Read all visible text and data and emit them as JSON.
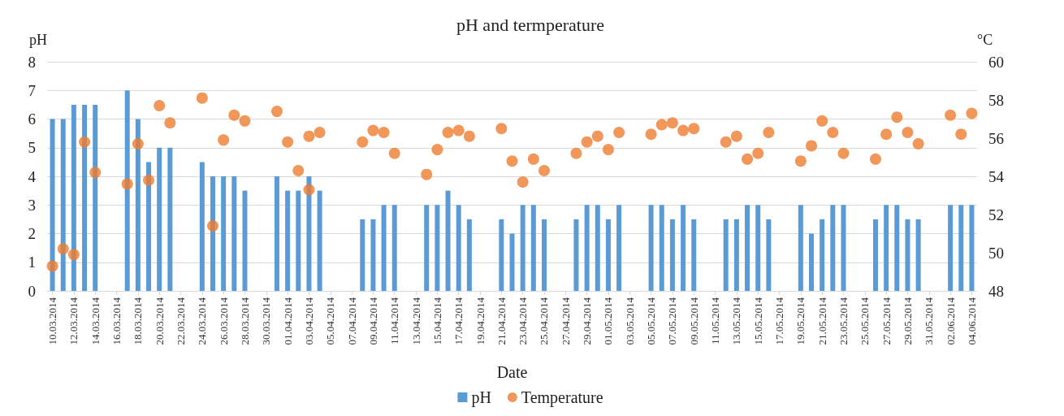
{
  "chart_data": {
    "type": "bar",
    "title": "pH and termperature",
    "xlabel": "Date",
    "ylabel": "pH",
    "y2label": "°C",
    "xlim": [
      "2014-03-09T12:00",
      "2014-06-04T12:00"
    ],
    "xticks": [
      {
        "value": "2014-03-10",
        "label": "10.03.2014"
      },
      {
        "value": "2014-03-12",
        "label": "12.03.2014"
      },
      {
        "value": "2014-03-14",
        "label": "14.03.2014"
      },
      {
        "value": "2014-03-16",
        "label": "16.03.2014"
      },
      {
        "value": "2014-03-18",
        "label": "18.03.2014"
      },
      {
        "value": "2014-03-20",
        "label": "20.03.2014"
      },
      {
        "value": "2014-03-22",
        "label": "22.03.2014"
      },
      {
        "value": "2014-03-24",
        "label": "24.03.2014"
      },
      {
        "value": "2014-03-26",
        "label": "26.03.2014"
      },
      {
        "value": "2014-03-28",
        "label": "28.03.2014"
      },
      {
        "value": "2014-03-30",
        "label": "30.03.2014"
      },
      {
        "value": "2014-04-01",
        "label": "01.04.2014"
      },
      {
        "value": "2014-04-03",
        "label": "03.04.2014"
      },
      {
        "value": "2014-04-05",
        "label": "05.04.2014"
      },
      {
        "value": "2014-04-07",
        "label": "07.04.2014"
      },
      {
        "value": "2014-04-09",
        "label": "09.04.2014"
      },
      {
        "value": "2014-04-11",
        "label": "11.04.2014"
      },
      {
        "value": "2014-04-13",
        "label": "13.04.2014"
      },
      {
        "value": "2014-04-15",
        "label": "15.04.2014"
      },
      {
        "value": "2014-04-17",
        "label": "17.04.2014"
      },
      {
        "value": "2014-04-19",
        "label": "19.04.2014"
      },
      {
        "value": "2014-04-21",
        "label": "21.04.2014"
      },
      {
        "value": "2014-04-23",
        "label": "23.04.2014"
      },
      {
        "value": "2014-04-25",
        "label": "25.04.2014"
      },
      {
        "value": "2014-04-27",
        "label": "27.04.2014"
      },
      {
        "value": "2014-04-29",
        "label": "29.04.2014"
      },
      {
        "value": "2014-05-01",
        "label": "01.05.2014"
      },
      {
        "value": "2014-05-03",
        "label": "03.05.2014"
      },
      {
        "value": "2014-05-05",
        "label": "05.05.2014"
      },
      {
        "value": "2014-05-07",
        "label": "07.05.2014"
      },
      {
        "value": "2014-05-09",
        "label": "09.05.2014"
      },
      {
        "value": "2014-05-11",
        "label": "11.05.2014"
      },
      {
        "value": "2014-05-13",
        "label": "13.05.2014"
      },
      {
        "value": "2014-05-15",
        "label": "15.05.2014"
      },
      {
        "value": "2014-05-17",
        "label": "17.05.2014"
      },
      {
        "value": "2014-05-19",
        "label": "19.05.2014"
      },
      {
        "value": "2014-05-21",
        "label": "21.05.2014"
      },
      {
        "value": "2014-05-23",
        "label": "23.05.2014"
      },
      {
        "value": "2014-05-25",
        "label": "25.05.2014"
      },
      {
        "value": "2014-05-27",
        "label": "27.05.2014"
      },
      {
        "value": "2014-05-29",
        "label": "29.05.2014"
      },
      {
        "value": "2014-05-31",
        "label": "31.05.2014"
      },
      {
        "value": "2014-06-02",
        "label": "02.06.2014"
      },
      {
        "value": "2014-06-04",
        "label": "04.06.2014"
      }
    ],
    "ylim": [
      0,
      8
    ],
    "yticks": [
      0,
      1,
      2,
      3,
      4,
      5,
      6,
      7,
      8
    ],
    "y2lim": [
      48,
      60
    ],
    "y2ticks": [
      48,
      50,
      52,
      54,
      56,
      58,
      60
    ],
    "grid": "y",
    "legend": "bottom",
    "marker": "circle",
    "series": [
      {
        "name": "pH",
        "color": "#5b9bd5",
        "x": [
          "2014-03-10",
          "2014-03-11",
          "2014-03-12",
          "2014-03-13",
          "2014-03-14",
          "2014-03-17",
          "2014-03-18",
          "2014-03-19",
          "2014-03-20",
          "2014-03-21",
          "2014-03-24",
          "2014-03-25",
          "2014-03-26",
          "2014-03-27",
          "2014-03-28",
          "2014-03-31",
          "2014-04-01",
          "2014-04-02",
          "2014-04-03",
          "2014-04-04",
          "2014-04-08",
          "2014-04-09",
          "2014-04-10",
          "2014-04-11",
          "2014-04-14",
          "2014-04-15",
          "2014-04-16",
          "2014-04-17",
          "2014-04-18",
          "2014-04-21",
          "2014-04-22",
          "2014-04-23",
          "2014-04-24",
          "2014-04-25",
          "2014-04-28",
          "2014-04-29",
          "2014-04-30",
          "2014-05-01",
          "2014-05-02",
          "2014-05-05",
          "2014-05-06",
          "2014-05-07",
          "2014-05-08",
          "2014-05-09",
          "2014-05-12",
          "2014-05-13",
          "2014-05-14",
          "2014-05-15",
          "2014-05-16",
          "2014-05-19",
          "2014-05-20",
          "2014-05-21",
          "2014-05-22",
          "2014-05-23",
          "2014-05-26",
          "2014-05-27",
          "2014-05-28",
          "2014-05-29",
          "2014-05-30",
          "2014-06-02",
          "2014-06-03",
          "2014-06-04"
        ],
        "values": [
          6,
          6,
          6.5,
          6.5,
          6.5,
          7,
          6,
          4.5,
          5,
          5,
          4.5,
          4,
          4,
          4,
          3.5,
          4,
          3.5,
          3.5,
          4,
          3.5,
          2.5,
          2.5,
          3,
          3,
          3,
          3,
          3.5,
          3,
          2.5,
          2.5,
          2,
          3,
          3,
          2.5,
          2.5,
          3,
          3,
          2.5,
          3,
          3,
          3,
          2.5,
          3,
          2.5,
          2.5,
          2.5,
          3,
          3,
          2.5,
          3,
          2,
          2.5,
          3,
          3,
          2.5,
          3,
          3,
          2.5,
          2.5,
          3,
          3,
          3
        ]
      },
      {
        "name": "Temperature",
        "type": "scatter",
        "axis": "y2",
        "color": "#ed7d31",
        "x": [
          "2014-03-10",
          "2014-03-11",
          "2014-03-12",
          "2014-03-13",
          "2014-03-14",
          "2014-03-17",
          "2014-03-18",
          "2014-03-19",
          "2014-03-20",
          "2014-03-21",
          "2014-03-24",
          "2014-03-25",
          "2014-03-26",
          "2014-03-27",
          "2014-03-28",
          "2014-03-31",
          "2014-04-01",
          "2014-04-02",
          "2014-04-03",
          "2014-04-03",
          "2014-04-04",
          "2014-04-08",
          "2014-04-09",
          "2014-04-10",
          "2014-04-11",
          "2014-04-14",
          "2014-04-15",
          "2014-04-16",
          "2014-04-17",
          "2014-04-18",
          "2014-04-21",
          "2014-04-22",
          "2014-04-23",
          "2014-04-24",
          "2014-04-25",
          "2014-04-28",
          "2014-04-29",
          "2014-04-30",
          "2014-05-01",
          "2014-05-02",
          "2014-05-05",
          "2014-05-06",
          "2014-05-07",
          "2014-05-08",
          "2014-05-09",
          "2014-05-12",
          "2014-05-13",
          "2014-05-14",
          "2014-05-15",
          "2014-05-16",
          "2014-05-19",
          "2014-05-20",
          "2014-05-21",
          "2014-05-22",
          "2014-05-23",
          "2014-05-26",
          "2014-05-27",
          "2014-05-28",
          "2014-05-29",
          "2014-05-30",
          "2014-06-02",
          "2014-06-03",
          "2014-06-04"
        ],
        "values": [
          49.3,
          50.2,
          49.9,
          55.8,
          54.2,
          53.6,
          55.7,
          53.8,
          57.7,
          56.8,
          58.1,
          51.4,
          55.9,
          57.2,
          56.9,
          57.4,
          55.8,
          54.3,
          56.1,
          53.3,
          56.3,
          55.8,
          56.4,
          56.3,
          55.2,
          54.1,
          55.4,
          56.3,
          56.4,
          56.1,
          56.5,
          54.8,
          53.7,
          54.9,
          54.3,
          55.2,
          55.8,
          56.1,
          55.4,
          56.3,
          56.2,
          56.7,
          56.8,
          56.4,
          56.5,
          55.8,
          56.1,
          54.9,
          55.2,
          56.3,
          54.8,
          55.6,
          56.9,
          56.3,
          55.2,
          54.9,
          56.2,
          57.1,
          56.3,
          55.7,
          57.2,
          56.2,
          57.3
        ]
      }
    ]
  }
}
